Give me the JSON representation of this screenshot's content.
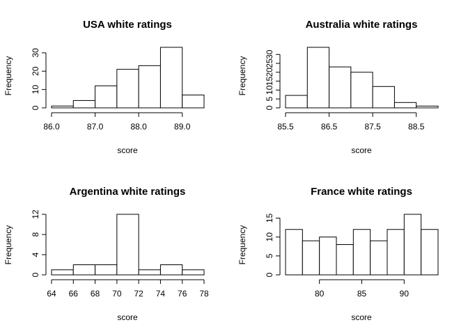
{
  "chart_data": [
    {
      "type": "bar",
      "title": "USA white ratings",
      "xlabel": "score",
      "ylabel": "Frequency",
      "bin_edges": [
        86.0,
        86.5,
        87.0,
        87.5,
        88.0,
        88.5,
        89.0,
        89.5
      ],
      "values": [
        1,
        4,
        12,
        21,
        23,
        33,
        7
      ],
      "xticks": [
        86.0,
        87.0,
        88.0,
        89.0
      ],
      "xtick_labels": [
        "86.0",
        "87.0",
        "88.0",
        "89.0"
      ],
      "yticks": [
        0,
        10,
        20,
        30
      ],
      "yaxis_max": 30,
      "xlim": [
        86.0,
        89.5
      ],
      "ylim": [
        0,
        33
      ]
    },
    {
      "type": "bar",
      "title": "Australia white ratings",
      "xlabel": "score",
      "ylabel": "Frequency",
      "bin_edges": [
        85.5,
        86.0,
        86.5,
        87.0,
        87.5,
        88.0,
        88.5,
        89.0
      ],
      "values": [
        7,
        34,
        23,
        20,
        12,
        3,
        1
      ],
      "xticks": [
        85.5,
        86.5,
        87.5,
        88.5
      ],
      "xtick_labels": [
        "85.5",
        "86.5",
        "87.5",
        "88.5"
      ],
      "yticks": [
        0,
        5,
        10,
        15,
        20,
        25,
        30
      ],
      "yaxis_max": 30,
      "xlim": [
        85.5,
        89.0
      ],
      "ylim": [
        0,
        34
      ]
    },
    {
      "type": "bar",
      "title": "Argentina white ratings",
      "xlabel": "score",
      "ylabel": "Frequency",
      "bin_edges": [
        64,
        66,
        68,
        70,
        72,
        74,
        76,
        78
      ],
      "values": [
        1,
        2,
        2,
        12,
        1,
        2,
        1
      ],
      "xticks": [
        64,
        66,
        68,
        70,
        72,
        74,
        76,
        78
      ],
      "xtick_labels": [
        "64",
        "66",
        "68",
        "70",
        "72",
        "74",
        "76",
        "78"
      ],
      "yticks": [
        0,
        4,
        8,
        12
      ],
      "yaxis_max": 12,
      "xlim": [
        64,
        78
      ],
      "ylim": [
        0,
        12
      ]
    },
    {
      "type": "bar",
      "title": "France white ratings",
      "xlabel": "score",
      "ylabel": "Frequency",
      "bin_edges": [
        76,
        78,
        80,
        82,
        84,
        86,
        88,
        90,
        92,
        94
      ],
      "values": [
        12,
        9,
        10,
        8,
        12,
        9,
        12,
        16,
        12
      ],
      "xticks": [
        80,
        85,
        90
      ],
      "xtick_labels": [
        "80",
        "85",
        "90"
      ],
      "xaxis_line": [
        80,
        90
      ],
      "yticks": [
        0,
        5,
        10,
        15
      ],
      "yaxis_max": 15,
      "xlim": [
        76,
        94
      ],
      "ylim": [
        0,
        16
      ]
    }
  ]
}
